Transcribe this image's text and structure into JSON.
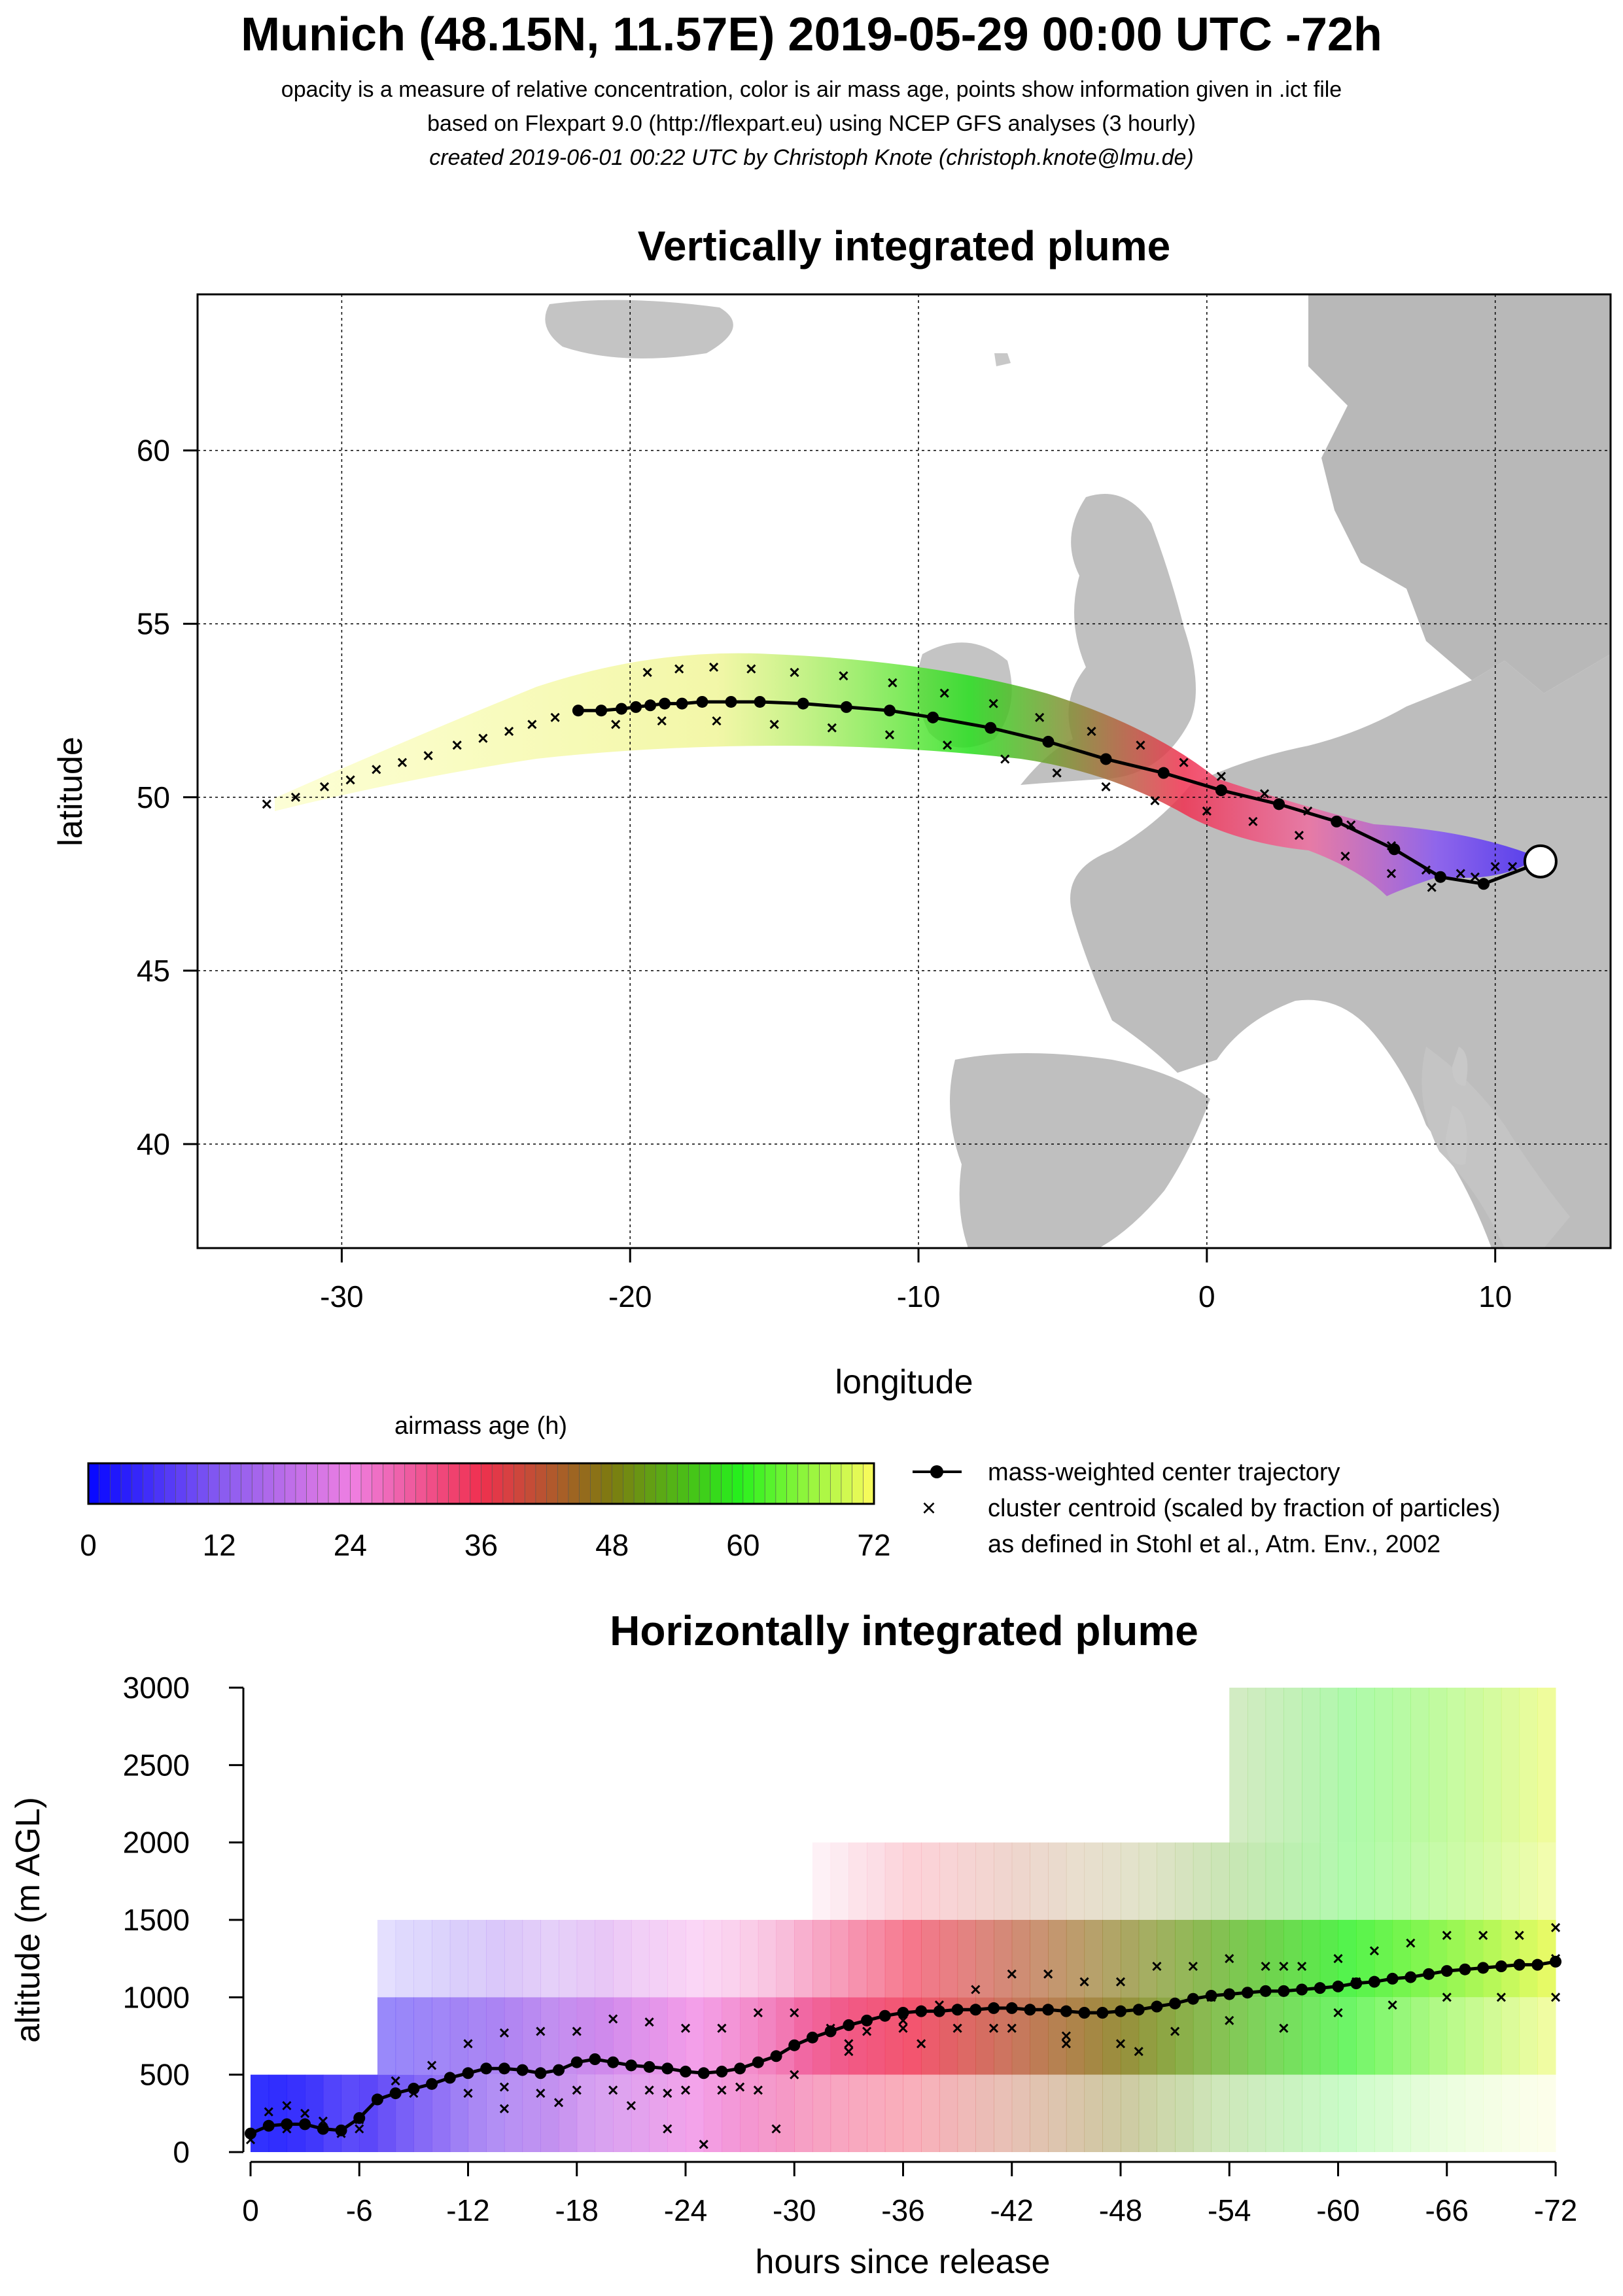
{
  "header": {
    "title": "Munich (48.15N, 11.57E) 2019-05-29 00:00 UTC -72h",
    "subtitle1": "opacity is a measure of relative concentration, color is air mass age, points show information given in .ict file",
    "subtitle2": "based on Flexpart 9.0 (http://flexpart.eu) using NCEP GFS analyses (3 hourly)",
    "subtitle3": "created 2019-06-01 00:22 UTC by Christoph Knote (christoph.knote@lmu.de)"
  },
  "colorbar": {
    "title": "airmass age (h)",
    "ticks": [
      "0",
      "12",
      "24",
      "36",
      "48",
      "60",
      "72"
    ],
    "colors": [
      "#0a0aff",
      "#8a5cf0",
      "#ef7fe2",
      "#f0304f",
      "#7e7a10",
      "#26f01d",
      "#f4fb5a"
    ]
  },
  "legend": {
    "line1": "mass-weighted center trajectory",
    "line2": "cluster centroid (scaled by fraction of particles)",
    "line3": "as defined in Stohl et al., Atm. Env., 2002"
  },
  "chart_data": [
    {
      "type": "scatter",
      "title": "Vertically integrated plume",
      "xlabel": "longitude",
      "ylabel": "latitude",
      "xlim": [
        -35,
        14
      ],
      "ylim": [
        37,
        64.5
      ],
      "xticks": [
        "-30",
        "-20",
        "-10",
        "0",
        "10"
      ],
      "yticks": [
        "40",
        "45",
        "50",
        "55",
        "60"
      ],
      "grid": true,
      "release_point": {
        "lon": 11.57,
        "lat": 48.15
      },
      "series": [
        {
          "name": "mass-weighted center trajectory",
          "age_h": [
            0,
            3,
            6,
            9,
            12,
            15,
            18,
            21,
            24,
            27,
            30,
            33,
            36,
            39,
            42,
            45,
            48,
            51,
            54,
            57,
            60,
            63,
            66,
            69,
            72
          ],
          "lon": [
            11.5,
            9.6,
            8.1,
            6.5,
            4.5,
            2.5,
            0.5,
            -1.5,
            -3.5,
            -5.5,
            -7.5,
            -9.5,
            -11.0,
            -12.5,
            -14.0,
            -15.5,
            -16.5,
            -17.5,
            -18.2,
            -18.8,
            -19.3,
            -19.8,
            -20.3,
            -21.0,
            -21.8
          ],
          "lat": [
            48.1,
            47.5,
            47.7,
            48.5,
            49.3,
            49.8,
            50.2,
            50.7,
            51.1,
            51.6,
            52.0,
            52.3,
            52.5,
            52.6,
            52.7,
            52.75,
            52.75,
            52.75,
            52.7,
            52.7,
            52.65,
            52.6,
            52.55,
            52.5,
            52.5
          ]
        },
        {
          "name": "cluster centroid (scaled by fraction of particles)",
          "lon": [
            -32.6,
            -31.6,
            -30.6,
            -29.7,
            -28.8,
            -27.9,
            -27.0,
            -26.0,
            -25.1,
            -24.2,
            -23.4,
            -22.6,
            -19.4,
            -18.3,
            -17.1,
            -15.8,
            -14.3,
            -12.6,
            -10.9,
            -9.1,
            -7.4,
            -5.8,
            -4.0,
            -2.3,
            -0.8,
            0.5,
            2.0,
            3.5,
            5.0,
            6.4,
            7.6,
            8.8,
            10.0,
            -20.5,
            -18.9,
            -17.0,
            -15.0,
            -13.0,
            -11.0,
            -9.0,
            -7.0,
            -5.2,
            -3.5,
            -1.8,
            0.0,
            1.6,
            3.2,
            4.8,
            6.4,
            7.8,
            9.3,
            10.6
          ],
          "lat": [
            49.8,
            50.0,
            50.3,
            50.5,
            50.8,
            51.0,
            51.2,
            51.5,
            51.7,
            51.9,
            52.1,
            52.3,
            53.6,
            53.7,
            53.75,
            53.7,
            53.6,
            53.5,
            53.3,
            53.0,
            52.7,
            52.3,
            51.9,
            51.5,
            51.0,
            50.6,
            50.1,
            49.6,
            49.2,
            48.6,
            47.9,
            47.8,
            48.0,
            52.1,
            52.2,
            52.2,
            52.1,
            52.0,
            51.8,
            51.5,
            51.1,
            50.7,
            50.3,
            49.9,
            49.6,
            49.3,
            48.9,
            48.3,
            47.8,
            47.4,
            47.7,
            48.0
          ]
        }
      ]
    },
    {
      "type": "scatter",
      "title": "Horizontally integrated plume",
      "xlabel": "hours since release",
      "ylabel": "altitude (m AGL)",
      "xlim": [
        0,
        -72
      ],
      "ylim": [
        0,
        3000
      ],
      "xticks": [
        "0",
        "-6",
        "-12",
        "-18",
        "-24",
        "-30",
        "-36",
        "-42",
        "-48",
        "-54",
        "-60",
        "-66",
        "-72"
      ],
      "yticks": [
        "0",
        "500",
        "1000",
        "1500",
        "2000",
        "2500",
        "3000"
      ],
      "series": [
        {
          "name": "mass-weighted center trajectory",
          "hours": [
            0,
            -1,
            -2,
            -3,
            -4,
            -5,
            -6,
            -7,
            -8,
            -9,
            -10,
            -11,
            -12,
            -13,
            -14,
            -15,
            -16,
            -17,
            -18,
            -19,
            -20,
            -21,
            -22,
            -23,
            -24,
            -25,
            -26,
            -27,
            -28,
            -29,
            -30,
            -31,
            -32,
            -33,
            -34,
            -35,
            -36,
            -37,
            -38,
            -39,
            -40,
            -41,
            -42,
            -43,
            -44,
            -45,
            -46,
            -47,
            -48,
            -49,
            -50,
            -51,
            -52,
            -53,
            -54,
            -55,
            -56,
            -57,
            -58,
            -59,
            -60,
            -61,
            -62,
            -63,
            -64,
            -65,
            -66,
            -67,
            -68,
            -69,
            -70,
            -71,
            -72
          ],
          "altitude": [
            120,
            170,
            180,
            180,
            150,
            140,
            220,
            340,
            380,
            410,
            440,
            480,
            510,
            540,
            540,
            530,
            510,
            530,
            580,
            600,
            580,
            560,
            550,
            540,
            520,
            510,
            520,
            540,
            580,
            620,
            690,
            740,
            780,
            820,
            850,
            880,
            900,
            910,
            910,
            920,
            920,
            930,
            930,
            920,
            920,
            910,
            900,
            900,
            910,
            920,
            940,
            960,
            990,
            1010,
            1020,
            1030,
            1040,
            1040,
            1050,
            1060,
            1070,
            1090,
            1100,
            1120,
            1130,
            1150,
            1170,
            1180,
            1190,
            1200,
            1210,
            1210,
            1230
          ]
        },
        {
          "name": "cluster centroid (scaled by fraction of particles)",
          "hours": [
            0,
            -1,
            -2,
            -3,
            -4,
            -5,
            -6,
            -8,
            -10,
            -12,
            -14,
            -16,
            -18,
            -20,
            -22,
            -24,
            -26,
            -28,
            -30,
            -32,
            -34,
            -36,
            -38,
            -40,
            -42,
            -44,
            -46,
            -48,
            -50,
            -52,
            -54,
            -56,
            -58,
            -60,
            -62,
            -64,
            -66,
            -68,
            -70,
            -72,
            -2,
            -6,
            -9,
            -12,
            -14,
            -16,
            -18,
            -20,
            -22,
            -24,
            -26,
            -28,
            -30,
            -33,
            -36,
            -39,
            -42,
            -45,
            -48,
            -51,
            -54,
            -57,
            -60,
            -63,
            -66,
            -69,
            -72,
            -21,
            -23,
            -25,
            -29,
            -14,
            -17,
            -23,
            -27,
            -33,
            -37,
            -41,
            -45,
            -49,
            -53,
            -57,
            -61,
            -65,
            -69,
            -72
          ],
          "altitude": [
            80,
            260,
            300,
            250,
            200,
            120,
            210,
            460,
            560,
            700,
            770,
            780,
            780,
            860,
            840,
            800,
            800,
            900,
            900,
            800,
            780,
            850,
            950,
            1050,
            1150,
            1150,
            1100,
            1100,
            1200,
            1200,
            1250,
            1200,
            1200,
            1250,
            1300,
            1350,
            1400,
            1400,
            1400,
            1450,
            150,
            150,
            380,
            380,
            420,
            380,
            400,
            400,
            400,
            400,
            400,
            400,
            500,
            700,
            800,
            800,
            800,
            750,
            700,
            780,
            850,
            800,
            900,
            950,
            1000,
            1000,
            1000,
            300,
            150,
            50,
            150,
            280,
            320,
            380,
            420,
            650,
            700,
            800,
            700,
            650,
            1000,
            1200,
            1100,
            1150,
            1200,
            1250
          ]
        }
      ],
      "shading": {
        "description_levels_m": [
          0,
          500,
          1000,
          1500,
          2000,
          3000
        ]
      }
    }
  ]
}
